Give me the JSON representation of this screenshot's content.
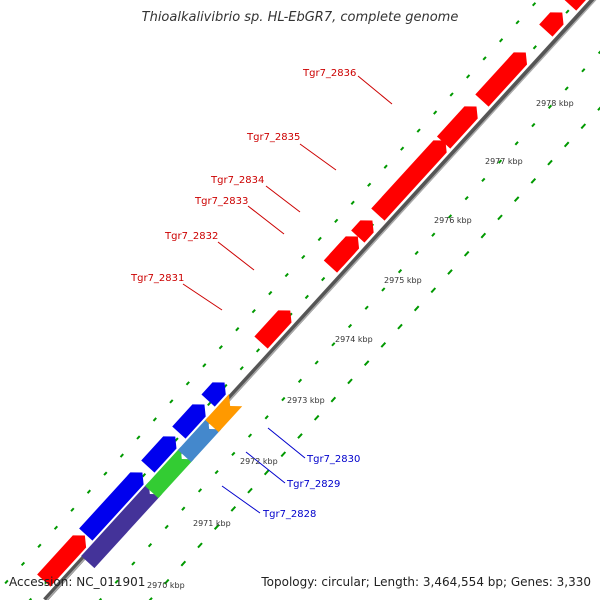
{
  "title": "Thioalkalivibrio sp. HL-EbGR7, complete genome",
  "accession": "Accession: NC_011901",
  "info": "Topology: circular; Length: 3,464,554 bp; Genes: 3,330",
  "colors": {
    "red_gene": "#ff0000",
    "blue_gene": "#0000ee",
    "orange_gene": "#ff9900",
    "steelblue_gene": "#4488cc",
    "green_gene": "#33cc33",
    "purple_gene": "#443399",
    "red_label": "#cc0000",
    "blue_label": "#0000cc",
    "dots": "#009900",
    "backbone": "#888888"
  },
  "kbp_labels": [
    "2970 kbp",
    "2971 kbp",
    "2972 kbp",
    "2973 kbp",
    "2974 kbp",
    "2975 kbp",
    "2976 kbp",
    "2977 kbp",
    "2978 kbp"
  ],
  "red_gene_labels": [
    "Tgr7_2836",
    "Tgr7_2835",
    "Tgr7_2834",
    "Tgr7_2833",
    "Tgr7_2832",
    "Tgr7_2831"
  ],
  "blue_gene_labels": [
    "Tgr7_2830",
    "Tgr7_2829",
    "Tgr7_2828"
  ]
}
